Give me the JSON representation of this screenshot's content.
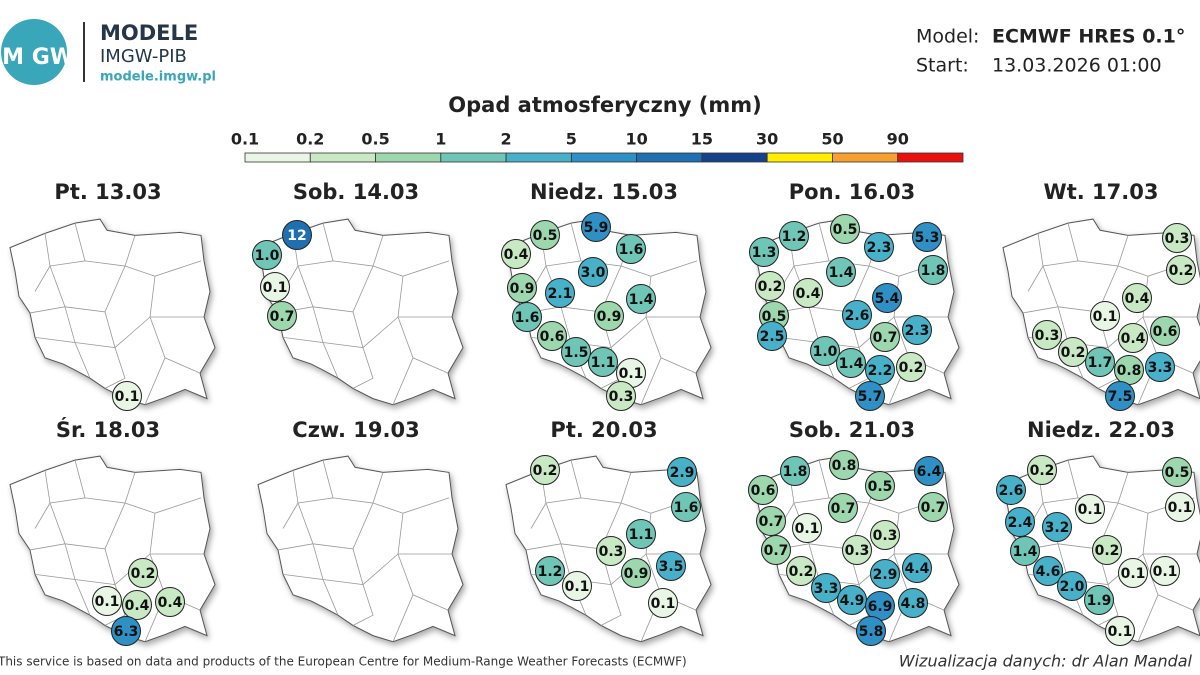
{
  "header": {
    "logo": "IM GW",
    "brand": "MODELE",
    "org": "IMGW-PIB",
    "url": "modele.imgw.pl",
    "model_label": "Model:",
    "model": "ECMWF HRES 0.1°",
    "start_label": "Start:",
    "start": "13.03.2026 01:00"
  },
  "legend": {
    "title": "Opad atmosferyczny (mm)",
    "breaks": [
      "0.1",
      "0.2",
      "0.5",
      "1",
      "2",
      "5",
      "10",
      "15",
      "30",
      "50",
      "90"
    ],
    "colors": [
      "#e9f6e6",
      "#c9e9c5",
      "#9dd7ad",
      "#6fc5b6",
      "#46b1c9",
      "#2f90c5",
      "#1f6fb1",
      "#15428a",
      "#ffee00",
      "#f7a030",
      "#e81010"
    ]
  },
  "panels": [
    {
      "title": "Pt. 13.03",
      "bubbles": [
        "0.1"
      ]
    },
    {
      "title": "Sob. 14.03",
      "bubbles": [
        "12",
        "1.0",
        "0.1",
        "0.7"
      ]
    },
    {
      "title": "Niedz. 15.03",
      "bubbles": [
        "5.9",
        "0.5",
        "0.4",
        "1.6",
        "3.0",
        "0.9",
        "2.1",
        "1.4",
        "1.6",
        "0.9",
        "0.6",
        "1.5",
        "1.1",
        "0.1",
        "0.3"
      ]
    },
    {
      "title": "Pon. 16.03",
      "bubbles": [
        "1.2",
        "0.5",
        "5.3",
        "1.3",
        "2.3",
        "1.8",
        "1.4",
        "0.2",
        "0.4",
        "5.4",
        "0.5",
        "2.6",
        "2.3",
        "0.7",
        "2.5",
        "1.0",
        "1.4",
        "2.2",
        "0.2",
        "5.7"
      ]
    },
    {
      "title": "Wt. 17.03",
      "bubbles": [
        "0.3",
        "0.2",
        "0.4",
        "0.1",
        "0.6",
        "0.3",
        "0.4",
        "0.2",
        "1.7",
        "0.8",
        "3.3",
        "7.5"
      ]
    },
    {
      "title": "Śr. 18.03",
      "bubbles": [
        "0.2",
        "0.1",
        "0.4",
        "0.4",
        "6.3"
      ]
    },
    {
      "title": "Czw. 19.03",
      "bubbles": []
    },
    {
      "title": "Pt. 20.03",
      "bubbles": [
        "0.2",
        "2.9",
        "1.6",
        "1.1",
        "0.3",
        "1.2",
        "0.9",
        "3.5",
        "0.1",
        "0.1"
      ]
    },
    {
      "title": "Sob. 21.03",
      "bubbles": [
        "1.8",
        "0.8",
        "6.4",
        "0.6",
        "0.5",
        "0.7",
        "0.7",
        "0.7",
        "0.1",
        "0.3",
        "0.7",
        "0.3",
        "0.2",
        "2.9",
        "4.4",
        "3.3",
        "4.9",
        "6.9",
        "4.8",
        "5.8"
      ]
    },
    {
      "title": "Niedz. 22.03",
      "bubbles": [
        "0.2",
        "0.5",
        "2.6",
        "0.1",
        "0.1",
        "2.4",
        "3.2",
        "1.4",
        "0.2",
        "0.1",
        "0.1",
        "4.6",
        "2.0",
        "1.9",
        "0.1"
      ]
    }
  ],
  "footer": {
    "source": "This service is based on data and products of the European Centre for Medium-Range Weather Forecasts (ECMWF)",
    "credit": "Wizualizacja danych: dr Alan Mandal"
  }
}
